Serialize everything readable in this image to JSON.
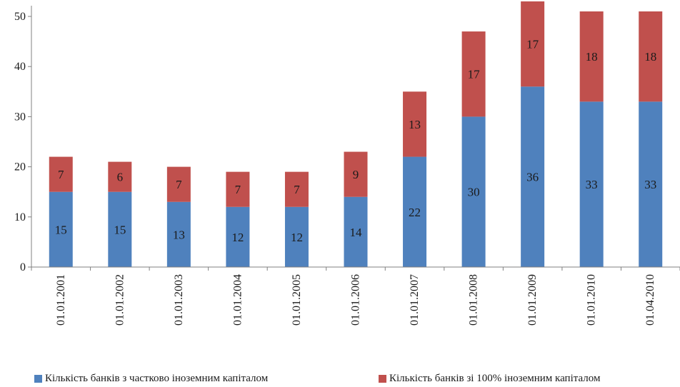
{
  "chart_data": {
    "type": "bar",
    "stacked": true,
    "categories": [
      "01.01.2001",
      "01.01.2002",
      "01.01.2003",
      "01.01.2004",
      "01.01.2005",
      "01.01.2006",
      "01.01.2007",
      "01.01.2008",
      "01.01.2009",
      "01.01.2010",
      "01.04.2010"
    ],
    "series": [
      {
        "name": "Кількість банків з частково іноземним капіталом",
        "color": "#4f81bd",
        "values": [
          15,
          15,
          13,
          12,
          12,
          14,
          22,
          30,
          36,
          33,
          33
        ]
      },
      {
        "name": "Кількість банків зі 100% іноземним капіталом",
        "color": "#c0504d",
        "values": [
          7,
          6,
          7,
          7,
          7,
          9,
          13,
          17,
          17,
          18,
          18
        ]
      }
    ],
    "ylim": [
      0,
      50
    ],
    "yticks": [
      0,
      10,
      20,
      30,
      40,
      50
    ],
    "grid": false,
    "legend_position": "bottom"
  }
}
